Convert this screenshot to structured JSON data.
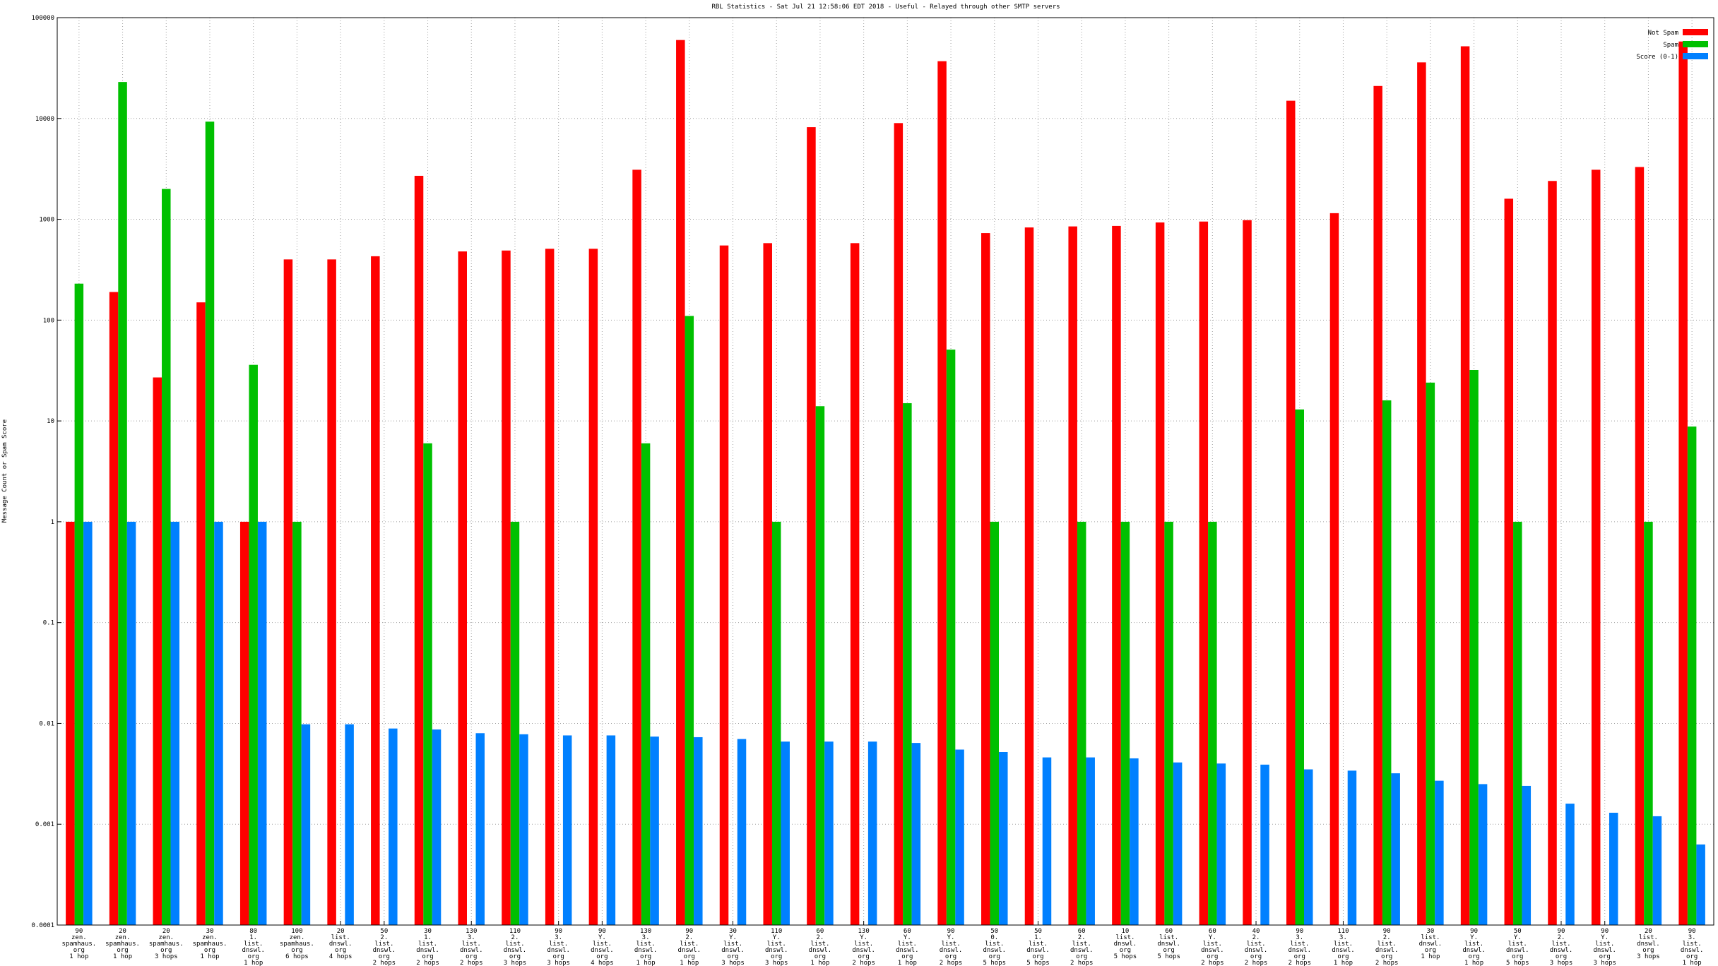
{
  "chart_data": {
    "type": "bar",
    "title": "RBL Statistics - Sat Jul 21 12:58:06 EDT 2018 - Useful - Relayed through other SMTP servers",
    "ylabel": "Message Count or Spam Score",
    "ylog": true,
    "grid": true,
    "legend": "upper right",
    "ylim": [
      0.0001,
      100000
    ],
    "yticks": [
      0.0001,
      0.001,
      0.01,
      0.1,
      1,
      10,
      100,
      1000,
      10000,
      100000
    ],
    "categories": [
      [
        "90",
        "zen.",
        "spamhaus.",
        "org",
        "1 hop"
      ],
      [
        "20",
        "zen.",
        "spamhaus.",
        "org",
        "1 hop"
      ],
      [
        "20",
        "zen.",
        "spamhaus.",
        "org",
        "3 hops"
      ],
      [
        "30",
        "zen.",
        "spamhaus.",
        "org",
        "1 hop"
      ],
      [
        "80",
        "1.",
        "list.",
        "dnswl.",
        "org",
        "1 hop"
      ],
      [
        "100",
        "zen.",
        "spamhaus.",
        "org",
        "6 hops"
      ],
      [
        "20",
        "list.",
        "dnswl.",
        "org",
        "4 hops"
      ],
      [
        "50",
        "2.",
        "list.",
        "dnswl.",
        "org",
        "2 hops"
      ],
      [
        "30",
        "1.",
        "list.",
        "dnswl.",
        "org",
        "2 hops"
      ],
      [
        "130",
        "3.",
        "list.",
        "dnswl.",
        "org",
        "2 hops"
      ],
      [
        "110",
        "2.",
        "list.",
        "dnswl.",
        "org",
        "3 hops"
      ],
      [
        "90",
        "3.",
        "list.",
        "dnswl.",
        "org",
        "3 hops"
      ],
      [
        "90",
        "Y.",
        "list.",
        "dnswl.",
        "org",
        "4 hops"
      ],
      [
        "130",
        "3.",
        "list.",
        "dnswl.",
        "org",
        "1 hop"
      ],
      [
        "90",
        "2.",
        "list.",
        "dnswl.",
        "org",
        "1 hop"
      ],
      [
        "30",
        "Y.",
        "list.",
        "dnswl.",
        "org",
        "3 hops"
      ],
      [
        "110",
        "Y.",
        "list.",
        "dnswl.",
        "org",
        "3 hops"
      ],
      [
        "60",
        "2.",
        "list.",
        "dnswl.",
        "org",
        "1 hop"
      ],
      [
        "130",
        "Y.",
        "list.",
        "dnswl.",
        "org",
        "2 hops"
      ],
      [
        "60",
        "Y.",
        "list.",
        "dnswl.",
        "org",
        "1 hop"
      ],
      [
        "90",
        "Y.",
        "list.",
        "dnswl.",
        "org",
        "2 hops"
      ],
      [
        "50",
        "0.",
        "list.",
        "dnswl.",
        "org",
        "5 hops"
      ],
      [
        "50",
        "1.",
        "list.",
        "dnswl.",
        "org",
        "5 hops"
      ],
      [
        "60",
        "2.",
        "list.",
        "dnswl.",
        "org",
        "2 hops"
      ],
      [
        "10",
        "list.",
        "dnswl.",
        "org",
        "5 hops"
      ],
      [
        "60",
        "list.",
        "dnswl.",
        "org",
        "5 hops"
      ],
      [
        "60",
        "Y.",
        "list.",
        "dnswl.",
        "org",
        "2 hops"
      ],
      [
        "40",
        "2.",
        "list.",
        "dnswl.",
        "org",
        "2 hops"
      ],
      [
        "90",
        "3.",
        "list.",
        "dnswl.",
        "org",
        "2 hops"
      ],
      [
        "110",
        "3.",
        "list.",
        "dnswl.",
        "org",
        "1 hop"
      ],
      [
        "90",
        "2.",
        "list.",
        "dnswl.",
        "org",
        "2 hops"
      ],
      [
        "30",
        "list.",
        "dnswl.",
        "org",
        "1 hop"
      ],
      [
        "90",
        "Y.",
        "list.",
        "dnswl.",
        "org",
        "1 hop"
      ],
      [
        "50",
        "Y.",
        "list.",
        "dnswl.",
        "org",
        "5 hops"
      ],
      [
        "90",
        "2.",
        "list.",
        "dnswl.",
        "org",
        "3 hops"
      ],
      [
        "90",
        "Y.",
        "list.",
        "dnswl.",
        "org",
        "3 hops"
      ],
      [
        "20",
        "list.",
        "dnswl.",
        "org",
        "3 hops"
      ],
      [
        "90",
        "3.",
        "list.",
        "dnswl.",
        "org",
        "1 hop"
      ]
    ],
    "series": [
      {
        "name": "Not Spam",
        "color": "#ff0000",
        "values": [
          1,
          190,
          27,
          150,
          1,
          400,
          400,
          430,
          2700,
          480,
          490,
          510,
          510,
          3100,
          60000,
          550,
          580,
          8200,
          580,
          9000,
          37000,
          730,
          830,
          850,
          860,
          930,
          950,
          980,
          15000,
          1150,
          21000,
          36000,
          52000,
          1600,
          2400,
          3100,
          3300,
          58000
        ]
      },
      {
        "name": "Spam",
        "color": "#00c000",
        "values": [
          230,
          23000,
          2000,
          9300,
          36,
          1,
          null,
          null,
          6,
          null,
          1,
          null,
          null,
          6,
          110,
          null,
          1,
          14,
          null,
          15,
          51,
          1,
          null,
          1,
          1,
          1,
          1,
          null,
          13,
          null,
          16,
          24,
          32,
          1,
          null,
          null,
          1,
          8.8
        ]
      },
      {
        "name": "Score (0-1)",
        "color": "#0080ff",
        "values": [
          1,
          1,
          1,
          1,
          1,
          0.0098,
          0.0098,
          0.0089,
          0.0087,
          0.008,
          0.0078,
          0.0076,
          0.0076,
          0.0074,
          0.0073,
          0.007,
          0.0066,
          0.0066,
          0.0066,
          0.0064,
          0.0055,
          0.0052,
          0.0046,
          0.0046,
          0.0045,
          0.0041,
          0.004,
          0.0039,
          0.0035,
          0.0034,
          0.0032,
          0.0027,
          0.0025,
          0.0024,
          0.0016,
          0.0013,
          0.0012,
          0.00063
        ]
      }
    ]
  }
}
